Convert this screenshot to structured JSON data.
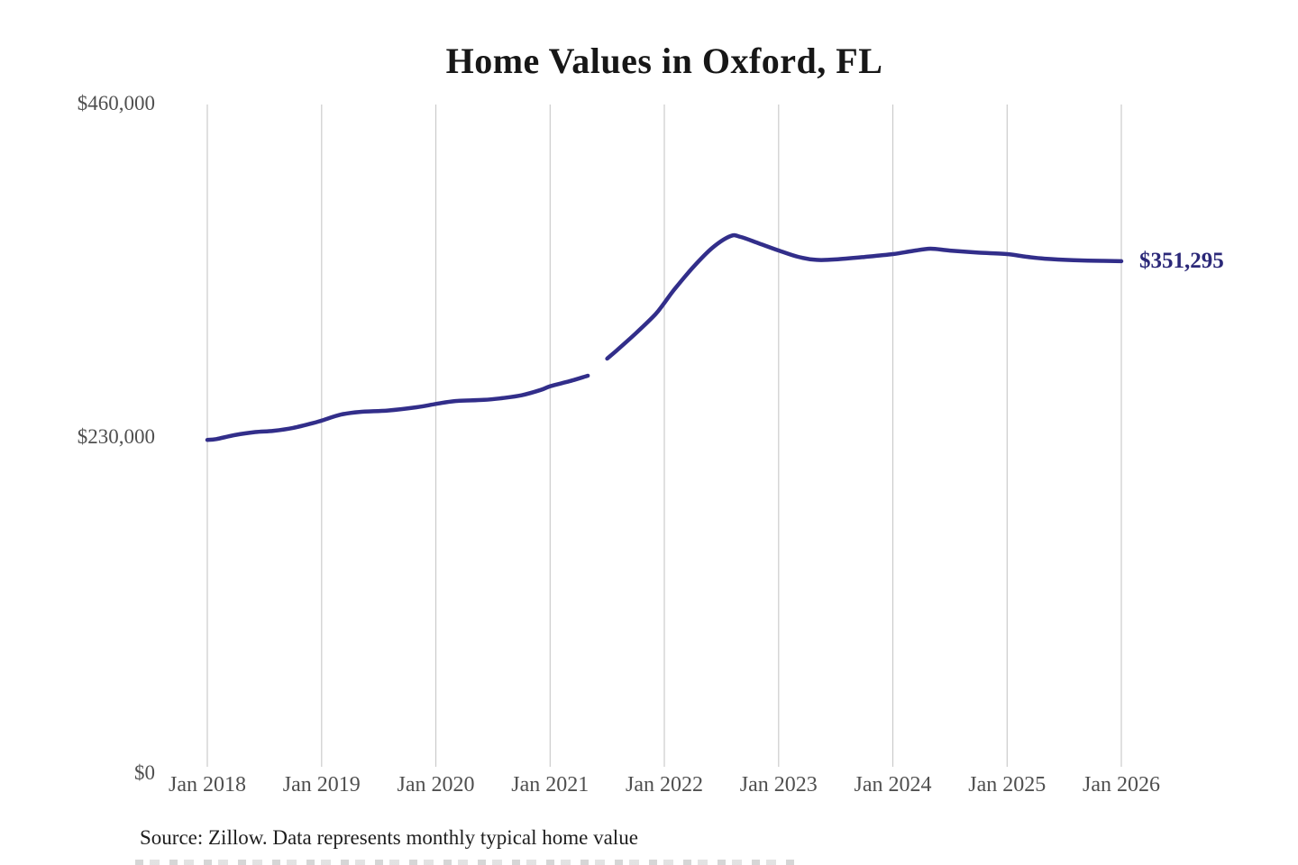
{
  "chart_data": {
    "type": "line",
    "title": "Home Values in Oxford, FL",
    "source_note": "Source: Zillow. Data represents monthly typical home value",
    "end_label": "$351,295",
    "final_value": 351295,
    "legend": "none",
    "colors": {
      "line": "#322e8a",
      "grid": "#cbcbcb",
      "tick_text": "#4f4f4f",
      "end_label_text": "#2b2878",
      "title_text": "#171717"
    },
    "x_axis": {
      "tick_labels": [
        "Jan 2018",
        "Jan 2019",
        "Jan 2020",
        "Jan 2021",
        "Jan 2022",
        "Jan 2023",
        "Jan 2024",
        "Jan 2025",
        "Jan 2026"
      ],
      "tick_values": [
        2018,
        2019,
        2020,
        2021,
        2022,
        2023,
        2024,
        2025,
        2026
      ],
      "range": [
        2018,
        2026
      ],
      "grid": true
    },
    "y_axis": {
      "tick_labels": [
        "$0",
        "$230,000",
        "$460,000"
      ],
      "tick_values": [
        0,
        230000,
        460000
      ],
      "range": [
        0,
        460000
      ],
      "grid": false
    },
    "series": [
      {
        "name": "Monthly typical home value",
        "segments": [
          {
            "x": [
              2018.0,
              2018.08,
              2018.25,
              2018.42,
              2018.58,
              2018.75,
              2018.92,
              2019.0,
              2019.17,
              2019.33,
              2019.58,
              2019.83,
              2020.0,
              2020.17,
              2020.42,
              2020.58,
              2020.75,
              2020.92,
              2021.0,
              2021.17,
              2021.33
            ],
            "values": [
              228000,
              228600,
              231500,
              233400,
              234300,
              236300,
              239500,
              241300,
              245500,
              247300,
              248300,
              250500,
              252800,
              254800,
              255600,
              256800,
              258800,
              262500,
              265000,
              268500,
              272300
            ]
          },
          {
            "x": [
              2021.5,
              2021.58,
              2021.75,
              2021.92,
              2022.0,
              2022.08,
              2022.25,
              2022.42,
              2022.58,
              2022.67,
              2022.83,
              2023.0,
              2023.17,
              2023.33,
              2023.5,
              2023.75,
              2024.0,
              2024.17,
              2024.33,
              2024.5,
              2024.75,
              2025.0,
              2025.17,
              2025.33,
              2025.58,
              2025.83,
              2026.0
            ],
            "values": [
              284100,
              289500,
              301500,
              314500,
              322500,
              331000,
              347000,
              360500,
              368600,
              368000,
              363500,
              358700,
              354300,
              352200,
              352500,
              354200,
              356200,
              358300,
              359900,
              358600,
              357200,
              356200,
              354300,
              353000,
              352000,
              351500,
              351295
            ]
          }
        ]
      }
    ]
  }
}
